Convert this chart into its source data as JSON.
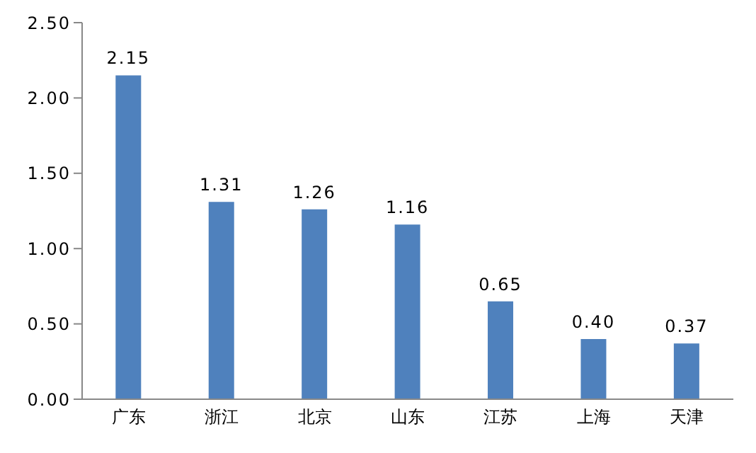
{
  "chart_data": {
    "type": "bar",
    "categories": [
      "广东",
      "浙江",
      "北京",
      "山东",
      "江苏",
      "上海",
      "天津"
    ],
    "values": [
      2.15,
      1.31,
      1.26,
      1.16,
      0.65,
      0.4,
      0.37
    ],
    "value_labels": [
      "2.15",
      "1.31",
      "1.26",
      "1.16",
      "0.65",
      "0.40",
      "0.37"
    ],
    "color": "#4f81bd",
    "ylim": [
      0,
      2.5
    ],
    "yticks": [
      {
        "value": 0,
        "label": "0.00"
      },
      {
        "value": 0.5,
        "label": "0.50"
      },
      {
        "value": 1,
        "label": "1.00"
      },
      {
        "value": 1.5,
        "label": "1.50"
      },
      {
        "value": 2,
        "label": "2.00"
      },
      {
        "value": 2.5,
        "label": "2.50"
      }
    ],
    "grid": false,
    "legend": false
  }
}
